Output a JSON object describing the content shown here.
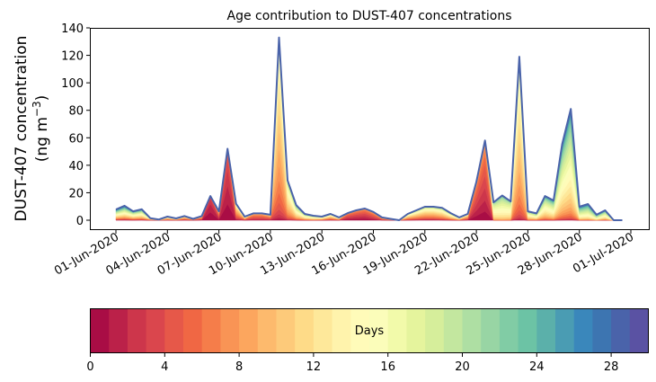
{
  "chart_data": {
    "type": "area",
    "stacked": true,
    "title": "Age contribution to DUST-407 concentrations",
    "ylabel_line1": "DUST-407 concentration",
    "ylabel_unit": "(ng m",
    "ylabel_exp": "−3",
    "ylabel_close": ")",
    "ylim": [
      0,
      140
    ],
    "yticks": [
      0,
      20,
      40,
      60,
      80,
      100,
      120,
      140
    ],
    "xlim_days_since_2020_06_01": [
      -1.5,
      31
    ],
    "xticks": [
      {
        "day": 0,
        "label": "01-Jun-2020"
      },
      {
        "day": 3,
        "label": "04-Jun-2020"
      },
      {
        "day": 6,
        "label": "07-Jun-2020"
      },
      {
        "day": 9,
        "label": "10-Jun-2020"
      },
      {
        "day": 12,
        "label": "13-Jun-2020"
      },
      {
        "day": 15,
        "label": "16-Jun-2020"
      },
      {
        "day": 18,
        "label": "19-Jun-2020"
      },
      {
        "day": 21,
        "label": "22-Jun-2020"
      },
      {
        "day": 24,
        "label": "25-Jun-2020"
      },
      {
        "day": 27,
        "label": "28-Jun-2020"
      },
      {
        "day": 30,
        "label": "01-Jul-2020"
      }
    ],
    "time_step_days": 0.5,
    "total": [
      7.8,
      10.5,
      6.5,
      8,
      1.5,
      0.5,
      2.6,
      1.3,
      3,
      1,
      3,
      17.6,
      6.5,
      52,
      12,
      2.6,
      5,
      5,
      4,
      133,
      29,
      11,
      4.6,
      3.3,
      2.6,
      4.6,
      2,
      5.2,
      7.2,
      8.5,
      6,
      2,
      1,
      0,
      4.6,
      7.2,
      9.8,
      9.8,
      9,
      5.2,
      2,
      4.6,
      28,
      58,
      13,
      18,
      13.7,
      119,
      6.5,
      5,
      17.6,
      14.4,
      55.5,
      81,
      9.8,
      11.8,
      4,
      7.2,
      0,
      0
    ],
    "age_mean_days": [
      15,
      15,
      14,
      14,
      10,
      10,
      10,
      10,
      8,
      8,
      6,
      1,
      4,
      1.5,
      8,
      9,
      5,
      5,
      6,
      10,
      12,
      14,
      14,
      14,
      12,
      10,
      10,
      3,
      3,
      3,
      4,
      6,
      8,
      10,
      10,
      10,
      10,
      10,
      11,
      12,
      12,
      8,
      3,
      3,
      15,
      16,
      15,
      11,
      14,
      15,
      15,
      16,
      16,
      16,
      18,
      18,
      18,
      16,
      16,
      16
    ],
    "age_spread_days": [
      9,
      9,
      8,
      8,
      6,
      6,
      6,
      6,
      5,
      5,
      4,
      1.5,
      4,
      2,
      5,
      6,
      3,
      3,
      4,
      4,
      5,
      6,
      6,
      6,
      6,
      6,
      6,
      3,
      3,
      3,
      3,
      4,
      5,
      6,
      6,
      6,
      6,
      6,
      6,
      6,
      6,
      5,
      3,
      3,
      4,
      4,
      4,
      4,
      5,
      6,
      6,
      6,
      6,
      6,
      6,
      6,
      6,
      6,
      6,
      6
    ],
    "colorbar": {
      "label": "Days",
      "range": [
        0,
        30
      ],
      "ticks": [
        0,
        4,
        8,
        12,
        16,
        20,
        24,
        28
      ],
      "colors": [
        "#a90d45",
        "#bb2149",
        "#cd364b",
        "#da464d",
        "#e65849",
        "#f06744",
        "#f57d4a",
        "#f99455",
        "#fca65e",
        "#fdba6d",
        "#fdca7a",
        "#fedb88",
        "#fee89a",
        "#fff3ac",
        "#fffbb9",
        "#fbfdba",
        "#f2faaa",
        "#e5f49d",
        "#d6ee9b",
        "#c3e79f",
        "#aedfa3",
        "#98d5a4",
        "#81cca5",
        "#6cc3a5",
        "#5bb0aa",
        "#4a9cb3",
        "#3a87bb",
        "#3d75b1",
        "#4a63aa",
        "#5a52a3"
      ]
    },
    "top_line_color": "#4a63aa"
  }
}
